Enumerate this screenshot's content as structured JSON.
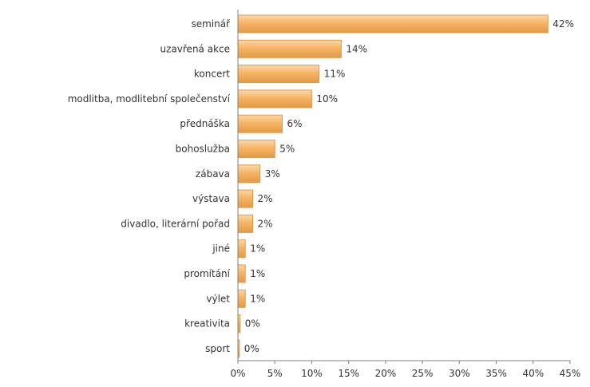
{
  "chart_data": {
    "type": "bar",
    "orientation": "horizontal",
    "categories": [
      "seminář",
      "uzavřená akce",
      "koncert",
      "modlitba, modlitební společenství",
      "přednáška",
      "bohoslužba",
      "zábava",
      "výstava",
      "divadlo, literární pořad",
      "jiné",
      "promítání",
      "výlet",
      "kreativita",
      "sport"
    ],
    "values": [
      42,
      14,
      11,
      10,
      6,
      5,
      3,
      2,
      2,
      1,
      1,
      1,
      0.3,
      0.2
    ],
    "value_labels": [
      "42%",
      "14%",
      "11%",
      "10%",
      "6%",
      "5%",
      "3%",
      "2%",
      "2%",
      "1%",
      "1%",
      "1%",
      "0%",
      "0%"
    ],
    "xlim": [
      0,
      45
    ],
    "xticks": [
      0,
      5,
      10,
      15,
      20,
      25,
      30,
      35,
      40,
      45
    ],
    "xtick_labels": [
      "0%",
      "5%",
      "10%",
      "15%",
      "20%",
      "25%",
      "30%",
      "35%",
      "40%",
      "45%"
    ],
    "grid": false,
    "legend": "none",
    "colors": {
      "bar_fill": "#F7B466",
      "bar_stroke": "#E29A46",
      "bar_highlight": "#FCD9A8",
      "axis": "#808080",
      "text": "#333333"
    }
  }
}
